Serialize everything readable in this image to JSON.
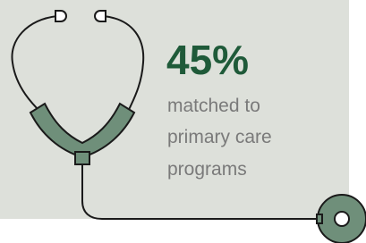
{
  "stat": {
    "value": "45%",
    "description": [
      "matched to",
      "primary care",
      "programs"
    ]
  }
}
